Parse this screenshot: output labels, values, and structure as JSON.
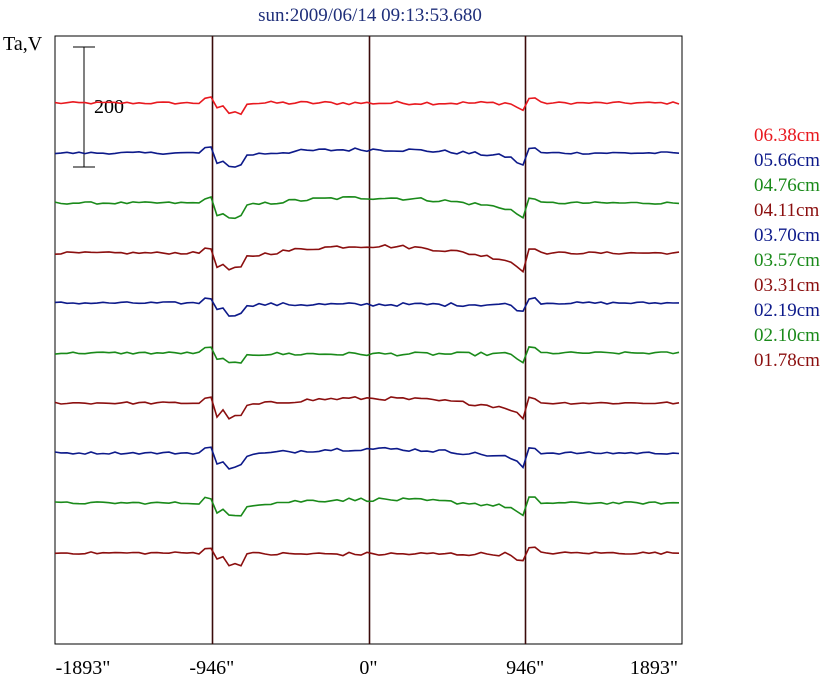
{
  "chart_data": {
    "type": "line",
    "title": "sun:2009/06/14 09:13:53.680",
    "ylabel": "Ta,V",
    "xlabel": "",
    "xlim": [
      -1893,
      1893
    ],
    "x_tick_values": [
      -1893,
      -946,
      0,
      946,
      1893
    ],
    "x_tick_labels": [
      "-1893\"",
      "-946\"",
      "0\"",
      "946\"",
      "1893\""
    ],
    "vertical_lines_at": [
      -946,
      0,
      946
    ],
    "scale_bar": {
      "label": "200",
      "value": 200
    },
    "series": [
      {
        "name": "06.38cm",
        "color": "#e8191f",
        "base_level": 0,
        "disk_shape": "flat",
        "disk_drop": 0
      },
      {
        "name": "05.66cm",
        "color": "#0d1a8a",
        "base_level": -300,
        "disk_shape": "bulge",
        "disk_drop": 60
      },
      {
        "name": "04.76cm",
        "color": "#1a8a1a",
        "base_level": -600,
        "disk_shape": "bulge",
        "disk_drop": 90
      },
      {
        "name": "04.11cm",
        "color": "#8b0f0f",
        "base_level": -900,
        "disk_shape": "bulge",
        "disk_drop": 120
      },
      {
        "name": "03.70cm",
        "color": "#0d1a8a",
        "base_level": -1200,
        "disk_shape": "flat",
        "disk_drop": 30
      },
      {
        "name": "03.57cm",
        "color": "#1a8a1a",
        "base_level": -1500,
        "disk_shape": "flat",
        "disk_drop": 20
      },
      {
        "name": "03.31cm",
        "color": "#8b0f0f",
        "base_level": -1800,
        "disk_shape": "bulge",
        "disk_drop": 80
      },
      {
        "name": "02.19cm",
        "color": "#0d1a8a",
        "base_level": -2100,
        "disk_shape": "bulge",
        "disk_drop": 70
      },
      {
        "name": "02.10cm",
        "color": "#1a8a1a",
        "base_level": -2400,
        "disk_shape": "bulge",
        "disk_drop": 60
      },
      {
        "name": "01.78cm",
        "color": "#8b0f0f",
        "base_level": -2700,
        "disk_shape": "flat",
        "disk_drop": 20
      }
    ]
  }
}
